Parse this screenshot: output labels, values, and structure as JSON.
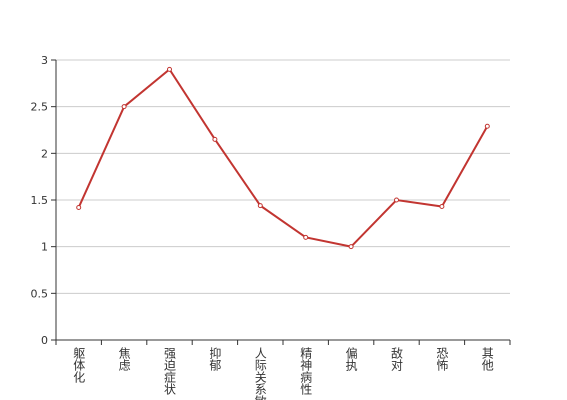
{
  "chart_data": {
    "type": "line",
    "categories": [
      "躯体化",
      "焦虑",
      "强迫症状",
      "抑郁",
      "人际关系敏感",
      "精神病性",
      "偏执",
      "敌对",
      "恐怖",
      "其他"
    ],
    "series": [
      {
        "color": "#c23531",
        "values": [
          1.42,
          2.5,
          2.9,
          2.15,
          1.44,
          1.1,
          1.0,
          1.5,
          1.43,
          2.29
        ]
      }
    ],
    "ylim": [
      0,
      3
    ],
    "yticks": [
      0,
      0.5,
      1,
      1.5,
      2,
      2.5,
      3
    ],
    "grid": true
  }
}
